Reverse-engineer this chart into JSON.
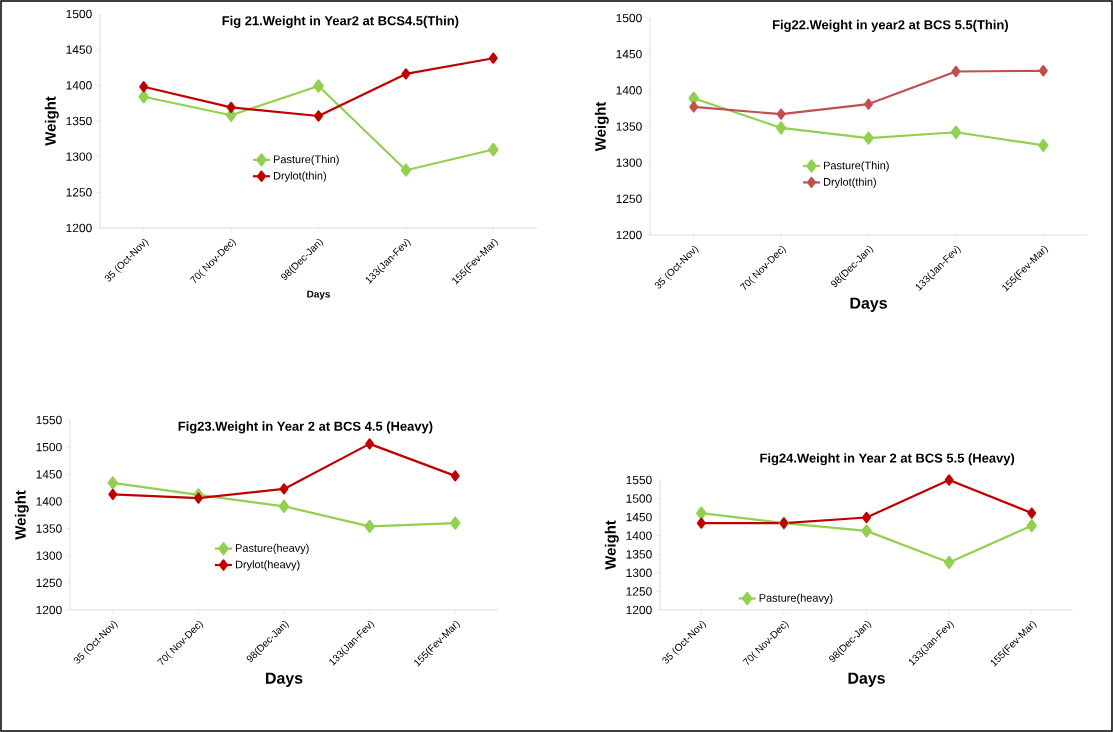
{
  "chart_data": [
    {
      "type": "line",
      "title": "Fig 21.Weight in Year2 at  BCS4.5(Thin)",
      "xlabel": "Days",
      "ylabel": "Weight",
      "categories": [
        "35 (Oct-Nov)",
        "70( Nov-Dec)",
        "98(Dec-Jan)",
        "133(Jan-Fev)",
        "155(Fev-Mar)"
      ],
      "ylim": [
        1200,
        1500
      ],
      "yticks": [
        1200,
        1250,
        1300,
        1350,
        1400,
        1450,
        1500
      ],
      "marker": "diamond",
      "legend": "center",
      "series": [
        {
          "name": "Pasture(Thin)",
          "color": "#92d050",
          "values": [
            1384,
            1358,
            1399,
            1281,
            1310
          ]
        },
        {
          "name": "Drylot(thin)",
          "color": "#c00000",
          "values": [
            1398,
            1369,
            1357,
            1416,
            1438
          ]
        }
      ]
    },
    {
      "type": "line",
      "title": "Fig22.Weight in  year2 at  BCS 5.5(Thin)",
      "xlabel": "Days",
      "ylabel": "Weight",
      "categories": [
        "35 (Oct-Nov)",
        "70( Nov-Dec)",
        "98(Dec-Jan)",
        "133(Jan-Fev)",
        "155(Fev-Mar)"
      ],
      "ylim": [
        1200,
        1500
      ],
      "yticks": [
        1200,
        1250,
        1300,
        1350,
        1400,
        1450,
        1500
      ],
      "marker": "diamond",
      "legend": "center",
      "series": [
        {
          "name": "Pasture(Thin)",
          "color": "#92d050",
          "values": [
            1389,
            1348,
            1334,
            1342,
            1324
          ]
        },
        {
          "name": "Drylot(thin)",
          "color": "#c0504d",
          "values": [
            1377,
            1367,
            1381,
            1426,
            1427
          ]
        }
      ]
    },
    {
      "type": "line",
      "title": "Fig23.Weight in Year 2 at  BCS 4.5 (Heavy)",
      "xlabel": "Days",
      "ylabel": "Weight",
      "categories": [
        "35 (Oct-Nov)",
        "70( Nov-Dec)",
        "98(Dec-Jan)",
        "133(Jan-Fev)",
        "155(Fev-Mar)"
      ],
      "ylim": [
        1200,
        1550
      ],
      "yticks": [
        1200,
        1250,
        1300,
        1350,
        1400,
        1450,
        1500,
        1550
      ],
      "marker": "diamond",
      "legend": "center",
      "series": [
        {
          "name": "Pasture(heavy)",
          "color": "#92d050",
          "values": [
            1434,
            1412,
            1391,
            1354,
            1360
          ]
        },
        {
          "name": "Drylot(heavy)",
          "color": "#c00000",
          "values": [
            1413,
            1406,
            1423,
            1506,
            1447
          ]
        }
      ]
    },
    {
      "type": "line",
      "title": "Fig24.Weight in  Year 2 at  BCS 5.5 (Heavy)",
      "xlabel": "Days",
      "ylabel": "Weight",
      "categories": [
        "35 (Oct-Nov)",
        "70( Nov-Dec)",
        "98(Dec-Jan)",
        "133(Jan-Fev)",
        "155(Fev-Mar)"
      ],
      "ylim": [
        1200,
        1550
      ],
      "yticks": [
        1200,
        1250,
        1300,
        1350,
        1400,
        1450,
        1500,
        1550
      ],
      "marker": "diamond",
      "legend": "bottom left",
      "series": [
        {
          "name": "Pasture(heavy)",
          "color": "#92d050",
          "values": [
            1461,
            1434,
            1413,
            1328,
            1427
          ]
        },
        {
          "color": "#c00000",
          "values": [
            1434,
            1434,
            1449,
            1550,
            1461
          ]
        }
      ]
    }
  ]
}
